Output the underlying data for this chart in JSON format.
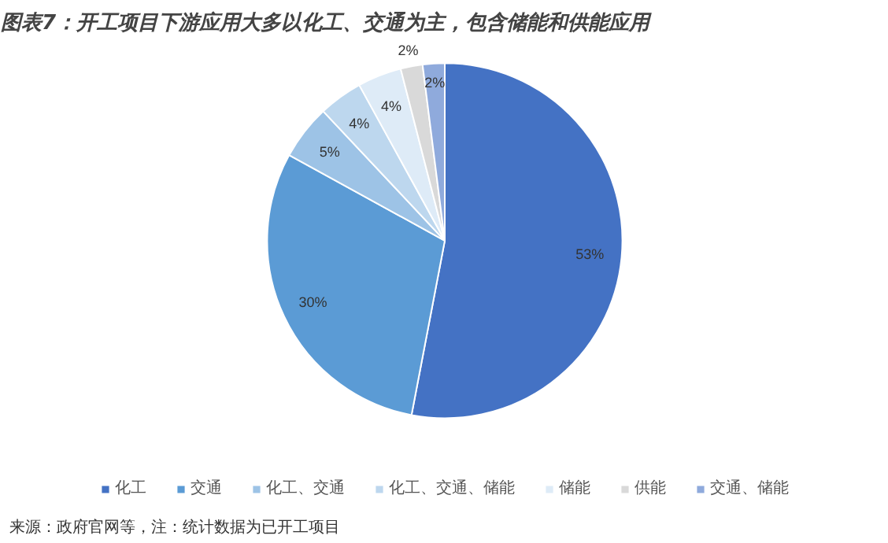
{
  "chart_data": {
    "type": "pie",
    "title": "图表7：开工项目下游应用大多以化工、交通为主，包含储能和供能应用",
    "categories": [
      "化工",
      "交通",
      "化工、交通",
      "化工、交通、储能",
      "储能",
      "供能",
      "交通、储能"
    ],
    "values": [
      53,
      30,
      5,
      4,
      4,
      2,
      2
    ],
    "colors": [
      "#4472c4",
      "#5b9bd5",
      "#9dc3e6",
      "#bdd7ee",
      "#deebf7",
      "#d9d9d9",
      "#8faadc"
    ],
    "value_labels": [
      "53%",
      "30%",
      "5%",
      "4%",
      "4%",
      "2%",
      "2%"
    ],
    "legend": "bottom",
    "annotations": [
      "来源：政府官网等，注：统计数据为已开工项目"
    ]
  }
}
